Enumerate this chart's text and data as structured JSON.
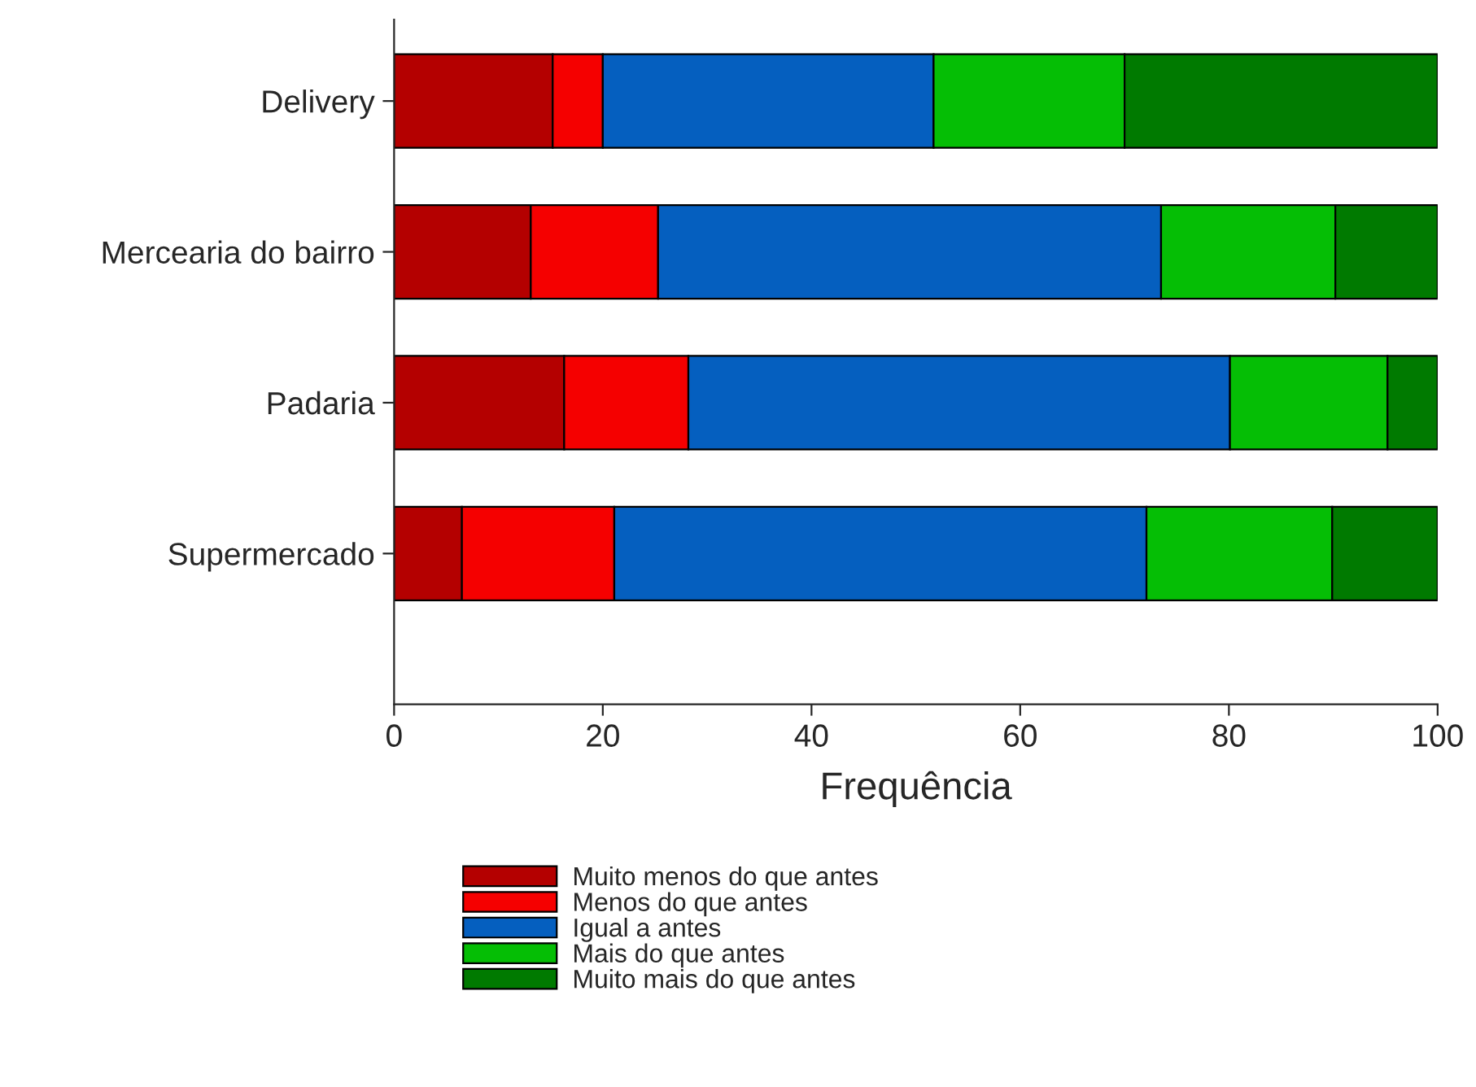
{
  "chart_data": {
    "type": "bar",
    "orientation": "horizontal",
    "stacked": true,
    "xlabel": "Frequência",
    "categories": [
      "Delivery",
      "Mercearia do bairro",
      "Padaria",
      "Supermercado"
    ],
    "series": [
      {
        "name": "Muito menos do que antes",
        "color": "#b40000",
        "values": [
          15.2,
          13.1,
          16.3,
          6.5
        ]
      },
      {
        "name": "Menos do que antes",
        "color": "#f50000",
        "values": [
          4.8,
          12.2,
          11.9,
          14.6
        ]
      },
      {
        "name": "Igual a antes",
        "color": "#055fbf",
        "values": [
          31.7,
          48.2,
          51.9,
          51.0
        ]
      },
      {
        "name": "Mais do que antes",
        "color": "#05be05",
        "values": [
          18.3,
          16.7,
          15.1,
          17.8
        ]
      },
      {
        "name": "Muito mais do que antes",
        "color": "#007a00",
        "values": [
          30.0,
          9.8,
          4.8,
          10.1
        ]
      }
    ],
    "xlim": [
      0,
      100
    ],
    "xticks": [
      0,
      20,
      40,
      60,
      80,
      100
    ],
    "grid": false,
    "legend": "bottom"
  }
}
